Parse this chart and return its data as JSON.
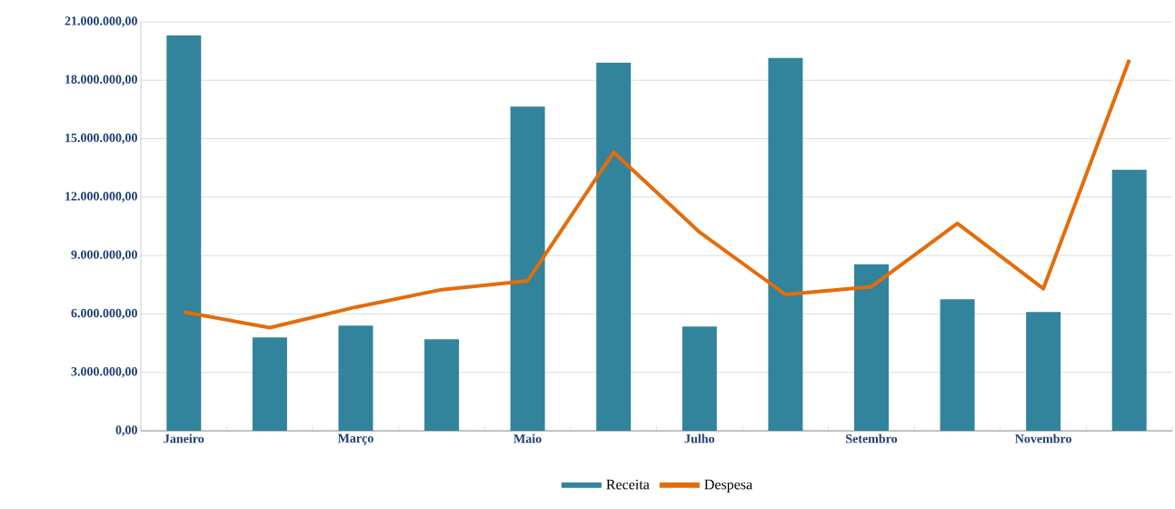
{
  "chart_data": {
    "type": "bar",
    "categories": [
      "Janeiro",
      null,
      "Março",
      null,
      "Maio",
      null,
      "Julho",
      null,
      "Setembro",
      null,
      "Novembro",
      null
    ],
    "series": [
      {
        "name": "Receita",
        "color": "#31849b",
        "values": [
          20300000,
          4800000,
          5400000,
          4700000,
          16650000,
          18900000,
          5350000,
          19150000,
          8550000,
          6750000,
          6100000,
          13400000
        ]
      },
      {
        "name": "Despesa",
        "type": "line",
        "color": "#e46c0a",
        "values": [
          6100000,
          5300000,
          6350000,
          7250000,
          7700000,
          14300000,
          10200000,
          7000000,
          7400000,
          10650000,
          7300000,
          19050000
        ]
      }
    ],
    "ylim": [
      0,
      21000000
    ],
    "yticks": [
      {
        "value": 0,
        "label": "0,00"
      },
      {
        "value": 3000000,
        "label": "3.000.000,00"
      },
      {
        "value": 6000000,
        "label": "6.000.000,00"
      },
      {
        "value": 9000000,
        "label": "9.000.000,00"
      },
      {
        "value": 12000000,
        "label": "12.000.000,00"
      },
      {
        "value": 15000000,
        "label": "15.000.000,00"
      },
      {
        "value": 18000000,
        "label": "18.000.000,00"
      },
      {
        "value": 21000000,
        "label": "21.000.000,00"
      }
    ],
    "grid": "y",
    "legend": "bottom"
  }
}
